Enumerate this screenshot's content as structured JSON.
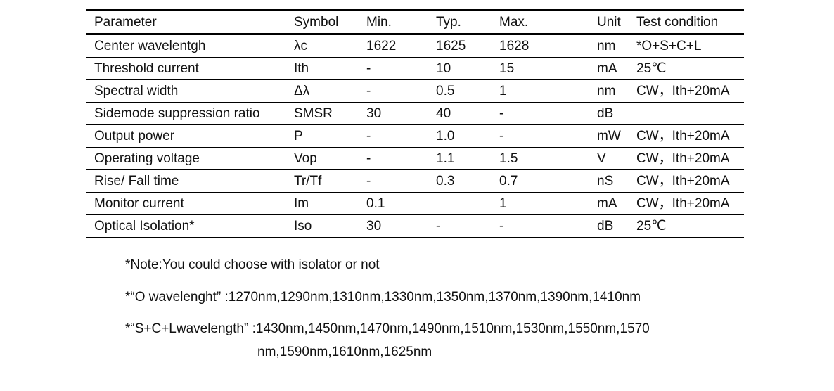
{
  "table": {
    "headers": [
      "Parameter",
      "Symbol",
      "Min.",
      "Typ.",
      "Max.",
      "Unit",
      "Test condition"
    ],
    "rows": [
      [
        "Center wavelentgh",
        "λc",
        "1622",
        "1625",
        "1628",
        "nm",
        "*O+S+C+L"
      ],
      [
        "Threshold current",
        "Ith",
        "-",
        "10",
        "15",
        "mA",
        "25℃"
      ],
      [
        "Spectral width",
        "Δλ",
        "-",
        "0.5",
        "1",
        "nm",
        "CW，Ith+20mA"
      ],
      [
        "Sidemode suppression ratio",
        "SMSR",
        "30",
        "40",
        "-",
        "dB",
        ""
      ],
      [
        "Output power",
        "P",
        "-",
        "1.0",
        "-",
        "mW",
        "CW，Ith+20mA"
      ],
      [
        "Operating voltage",
        "Vop",
        "-",
        "1.1",
        "1.5",
        "V",
        "CW，Ith+20mA"
      ],
      [
        "Rise/ Fall time",
        "Tr/Tf",
        "-",
        "0.3",
        "0.7",
        "nS",
        "CW，Ith+20mA"
      ],
      [
        "Monitor current",
        "Im",
        "0.1",
        "",
        "1",
        "mA",
        "CW，Ith+20mA"
      ],
      [
        "Optical Isolation*",
        "Iso",
        "30",
        "-",
        "-",
        "dB",
        "25℃"
      ]
    ]
  },
  "notes": {
    "note1": "*Note:You could choose with isolator or not",
    "note2": "*“O wavelenght” :1270nm,1290nm,1310nm,1330nm,1350nm,1370nm,1390nm,1410nm",
    "note3a": "*“S+C+Lwavelength”  :1430nm,1450nm,1470nm,1490nm,1510nm,1530nm,1550nm,1570",
    "note3b": "nm,1590nm,1610nm,1625nm"
  }
}
